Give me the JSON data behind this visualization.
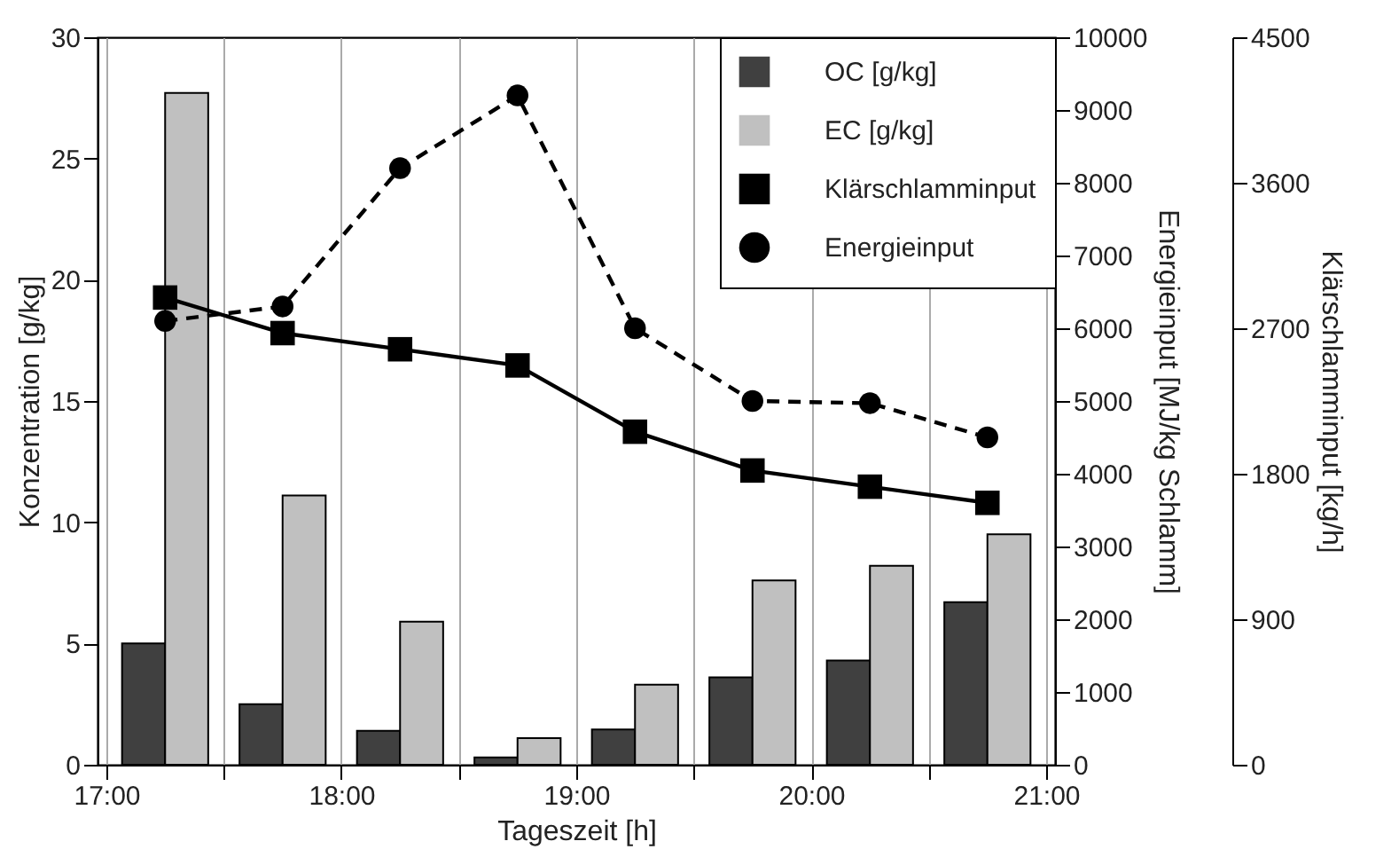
{
  "chart_data": {
    "type": "bar",
    "xlabel": "Tageszeit [h]",
    "ylabel": "Konzentration [g/kg]",
    "y2label": "Energieinput [MJ/kg Schlamm]",
    "y3label": "Klärschlamminput [kg/h]",
    "x": [
      17.25,
      17.75,
      18.25,
      18.75,
      19.25,
      19.75,
      20.25,
      20.75
    ],
    "xlim": [
      17,
      21
    ],
    "xticks": [
      {
        "value": 17,
        "label": "17:00"
      },
      {
        "value": 17.5,
        "label": null
      },
      {
        "value": 18,
        "label": "18:00"
      },
      {
        "value": 18.5,
        "label": null
      },
      {
        "value": 19,
        "label": "19:00"
      },
      {
        "value": 19.5,
        "label": null
      },
      {
        "value": 20,
        "label": "20:00"
      },
      {
        "value": 20.5,
        "label": null
      },
      {
        "value": 21,
        "label": "21:00"
      }
    ],
    "ylim": [
      0,
      30
    ],
    "yticks": [
      0,
      5,
      10,
      15,
      20,
      25,
      30
    ],
    "y2lim": [
      0,
      10000
    ],
    "y2ticks": [
      0,
      1000,
      2000,
      3000,
      4000,
      5000,
      6000,
      7000,
      8000,
      9000,
      10000
    ],
    "y3lim": [
      0,
      4500
    ],
    "y3ticks": [
      0,
      900,
      1800,
      2700,
      3600,
      4500
    ],
    "grid": "x",
    "legend": "top right",
    "series": [
      {
        "name": "OC [g/kg]",
        "color": "#404040",
        "values": [
          5.0,
          2.5,
          1.4,
          0.3,
          1.45,
          3.6,
          4.3,
          6.7
        ]
      },
      {
        "name": "EC [g/kg]",
        "color": "#c0c0c0",
        "values": [
          27.7,
          11.1,
          5.9,
          1.1,
          3.3,
          7.6,
          8.2,
          9.5
        ]
      },
      {
        "name": "Klärschlamminput",
        "type": "line",
        "axis": "y3",
        "marker": "square",
        "line_style": "solid",
        "color": "#000000",
        "values": [
          2890,
          2670,
          2570,
          2470,
          2060,
          1820,
          1720,
          1620
        ]
      },
      {
        "name": "Energieinput",
        "type": "line",
        "axis": "y2",
        "marker": "circle",
        "line_style": "dashed",
        "color": "#000000",
        "values": [
          6100,
          6300,
          8200,
          9200,
          6000,
          5000,
          4970,
          4500
        ]
      }
    ]
  }
}
